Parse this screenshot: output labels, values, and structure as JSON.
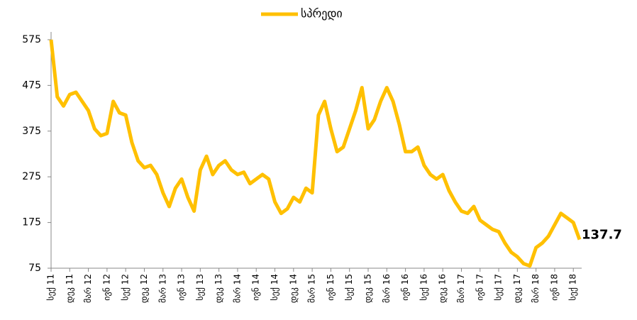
{
  "chart_data": {
    "type": "line",
    "categories": [
      "სექ 11",
      null,
      null,
      "დეკ 11",
      null,
      null,
      "მარ 12",
      null,
      null,
      "ივნ 12",
      null,
      null,
      "სექ 12",
      null,
      null,
      "დეკ 12",
      null,
      null,
      "მარ 13",
      null,
      null,
      "ივნ 13",
      null,
      null,
      "სექ 13",
      null,
      null,
      "დეკ 13",
      null,
      null,
      "მარ 14",
      null,
      null,
      "ივნ 14",
      null,
      null,
      "სექ 14",
      null,
      null,
      "დეკ 14",
      null,
      null,
      "მარ 15",
      null,
      null,
      "ივნ 15",
      null,
      null,
      "სექ 15",
      null,
      null,
      "დეკ 15",
      null,
      null,
      "მარ 16",
      null,
      null,
      "ივნ 16",
      null,
      null,
      "სექ 16",
      null,
      null,
      "დეკ 16",
      null,
      null,
      "მარ 17",
      null,
      null,
      "ივნ 17",
      null,
      null,
      "სექ 17",
      null,
      null,
      "დეკ 17",
      null,
      null,
      "მარ 18",
      null,
      null,
      "ივნ 18",
      null,
      null,
      "სექ 18",
      null
    ],
    "series": [
      {
        "name": "სპრედი",
        "color": "#FFC000",
        "values": [
          575,
          450,
          430,
          455,
          460,
          440,
          420,
          380,
          365,
          370,
          440,
          415,
          410,
          350,
          310,
          295,
          300,
          280,
          240,
          210,
          250,
          270,
          230,
          200,
          290,
          320,
          280,
          300,
          310,
          290,
          280,
          285,
          260,
          270,
          280,
          270,
          220,
          195,
          205,
          230,
          220,
          250,
          240,
          410,
          440,
          380,
          330,
          340,
          380,
          420,
          470,
          380,
          400,
          440,
          470,
          440,
          390,
          330,
          330,
          340,
          300,
          280,
          270,
          280,
          245,
          220,
          200,
          195,
          210,
          180,
          170,
          160,
          155,
          130,
          110,
          100,
          85,
          80,
          120,
          130,
          145,
          170,
          195,
          185,
          175,
          137.7
        ]
      }
    ],
    "ylim": [
      75,
      592
    ],
    "yticks": [
      75,
      175,
      275,
      375,
      475,
      575
    ],
    "legend": "top"
  }
}
